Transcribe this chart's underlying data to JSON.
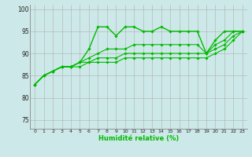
{
  "title": "",
  "xlabel": "Humidité relative (%)",
  "background_color": "#cce8e8",
  "grid_color": "#b0b0b0",
  "line_color": "#00bb00",
  "ylim": [
    73,
    101
  ],
  "xlim": [
    -0.5,
    23.5
  ],
  "yticks": [
    75,
    80,
    85,
    90,
    95,
    100
  ],
  "xticks": [
    0,
    1,
    2,
    3,
    4,
    5,
    6,
    7,
    8,
    9,
    10,
    11,
    12,
    13,
    14,
    15,
    16,
    17,
    18,
    19,
    20,
    21,
    22,
    23
  ],
  "series": [
    [
      83,
      85,
      86,
      87,
      87,
      88,
      91,
      96,
      96,
      94,
      96,
      96,
      95,
      95,
      96,
      95,
      95,
      95,
      95,
      90,
      93,
      95,
      95,
      95
    ],
    [
      83,
      85,
      86,
      87,
      87,
      88,
      89,
      90,
      91,
      91,
      91,
      92,
      92,
      92,
      92,
      92,
      92,
      92,
      92,
      90,
      92,
      93,
      95,
      95
    ],
    [
      83,
      85,
      86,
      87,
      87,
      88,
      88,
      89,
      89,
      89,
      90,
      90,
      90,
      90,
      90,
      90,
      90,
      90,
      90,
      90,
      91,
      92,
      94,
      95
    ],
    [
      83,
      85,
      86,
      87,
      87,
      87,
      88,
      88,
      88,
      88,
      89,
      89,
      89,
      89,
      89,
      89,
      89,
      89,
      89,
      89,
      90,
      91,
      93,
      95
    ]
  ]
}
